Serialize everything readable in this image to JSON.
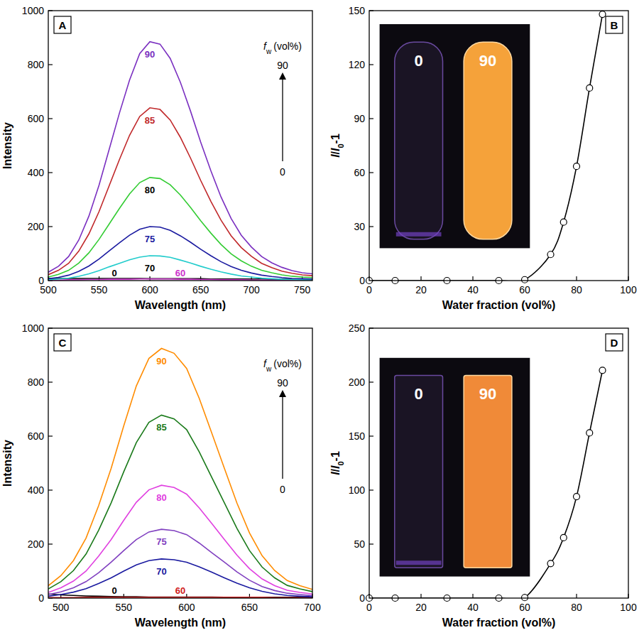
{
  "chart_data": [
    {
      "type": "line",
      "panel": "A",
      "xlabel": "Wavelength (nm)",
      "ylabel": "Intensity",
      "legend_title": "fw (vol%)",
      "x": [
        500,
        510,
        520,
        530,
        540,
        550,
        560,
        570,
        580,
        590,
        600,
        610,
        620,
        630,
        640,
        650,
        660,
        670,
        680,
        690,
        700,
        710,
        720,
        730,
        740,
        750,
        760
      ],
      "xlim": [
        500,
        760
      ],
      "xticks": [
        500,
        550,
        600,
        650,
        700,
        750
      ],
      "ylim": [
        0,
        1000
      ],
      "yticks": [
        0,
        200,
        400,
        600,
        800,
        1000
      ],
      "grid": false,
      "series": [
        {
          "name": "0",
          "color": "#000000",
          "values": [
            8,
            8,
            8,
            8,
            8,
            8,
            8,
            8,
            8,
            8,
            7,
            7,
            7,
            7,
            7,
            7,
            6,
            6,
            6,
            6,
            6,
            6,
            5,
            5,
            5,
            5,
            5
          ]
        },
        {
          "name": "60",
          "color": "#cc33cc",
          "values": [
            2,
            2,
            3,
            3,
            4,
            4,
            5,
            5,
            5,
            6,
            6,
            6,
            6,
            5,
            5,
            4,
            4,
            3,
            3,
            3,
            2,
            2,
            2,
            2,
            2,
            2,
            2
          ]
        },
        {
          "name": "70",
          "color": "#22cccc",
          "values": [
            3,
            6,
            9,
            16,
            25,
            37,
            51,
            64,
            77,
            87,
            92,
            91,
            86,
            76,
            65,
            53,
            42,
            32,
            24,
            17,
            13,
            9,
            7,
            5,
            4,
            3,
            3
          ]
        },
        {
          "name": "75",
          "color": "#1a1aa0",
          "values": [
            7,
            12,
            20,
            34,
            54,
            80,
            110,
            140,
            168,
            190,
            200,
            198,
            186,
            166,
            142,
            116,
            92,
            70,
            52,
            38,
            28,
            20,
            15,
            11,
            8,
            7,
            6
          ]
        },
        {
          "name": "80",
          "color": "#33cc33",
          "values": [
            13,
            23,
            38,
            65,
            103,
            153,
            210,
            267,
            321,
            363,
            382,
            378,
            355,
            317,
            271,
            222,
            176,
            134,
            99,
            73,
            53,
            38,
            29,
            21,
            16,
            13,
            11
          ]
        },
        {
          "name": "85",
          "color": "#c0282a",
          "values": [
            22,
            38,
            64,
            109,
            173,
            256,
            352,
            448,
            538,
            608,
            640,
            634,
            595,
            531,
            454,
            371,
            294,
            224,
            166,
            122,
            90,
            64,
            48,
            35,
            27,
            21,
            18
          ]
        },
        {
          "name": "90",
          "color": "#7a2fc0",
          "values": [
            31,
            53,
            89,
            150,
            239,
            354,
            487,
            620,
            743,
            841,
            885,
            876,
            823,
            735,
            628,
            513,
            407,
            310,
            230,
            168,
            124,
            89,
            66,
            49,
            37,
            29,
            25
          ]
        }
      ]
    },
    {
      "type": "line",
      "marker": "circle",
      "panel": "B",
      "xlabel": "Water fraction (vol%)",
      "ylabel": "I/I0-1",
      "inset_labels": [
        "0",
        "90"
      ],
      "x": [
        0,
        10,
        30,
        50,
        60,
        70,
        75,
        80,
        85,
        90
      ],
      "values": [
        0,
        0,
        0,
        0,
        0.5,
        14.5,
        32.5,
        63.5,
        107,
        148
      ],
      "color": "#000000",
      "xlim": [
        0,
        100
      ],
      "xticks": [
        0,
        20,
        40,
        60,
        80,
        100
      ],
      "ylim": [
        0,
        150
      ],
      "yticks": [
        0,
        30,
        60,
        90,
        120,
        150
      ],
      "grid": false
    },
    {
      "type": "line",
      "panel": "C",
      "xlabel": "Wavelength (nm)",
      "ylabel": "Intensity",
      "legend_title": "fw (vol%)",
      "x": [
        490,
        500,
        510,
        520,
        530,
        540,
        550,
        560,
        570,
        580,
        590,
        600,
        610,
        620,
        630,
        640,
        650,
        660,
        670,
        680,
        690,
        700
      ],
      "xlim": [
        490,
        700
      ],
      "xticks": [
        500,
        550,
        600,
        650,
        700
      ],
      "ylim": [
        0,
        1000
      ],
      "yticks": [
        0,
        200,
        400,
        600,
        800,
        1000
      ],
      "grid": false,
      "series": [
        {
          "name": "0",
          "color": "#000000",
          "values": [
            15,
            12,
            10,
            8,
            7,
            6,
            5,
            5,
            4,
            4,
            4,
            4,
            4,
            4,
            3,
            3,
            3,
            3,
            3,
            3,
            3,
            3
          ]
        },
        {
          "name": "60",
          "color": "#d02020",
          "values": [
            2,
            2,
            2,
            3,
            3,
            3,
            3,
            3,
            3,
            3,
            3,
            3,
            3,
            3,
            3,
            3,
            3,
            3,
            2,
            2,
            2,
            2
          ]
        },
        {
          "name": "70",
          "color": "#1a1aa0",
          "values": [
            7,
            13,
            22,
            35,
            54,
            75,
            100,
            123,
            139,
            145,
            142,
            133,
            116,
            96,
            75,
            55,
            38,
            25,
            16,
            10,
            7,
            5
          ]
        },
        {
          "name": "75",
          "color": "#8040c0",
          "values": [
            13,
            23,
            38,
            61,
            94,
            133,
            176,
            217,
            245,
            255,
            250,
            235,
            204,
            168,
            133,
            97,
            66,
            43,
            28,
            18,
            13,
            9
          ]
        },
        {
          "name": "80",
          "color": "#e040e0",
          "values": [
            21,
            38,
            63,
            100,
            155,
            217,
            288,
            355,
            401,
            418,
            410,
            385,
            334,
            276,
            217,
            159,
            109,
            71,
            46,
            29,
            21,
            15
          ]
        },
        {
          "name": "85",
          "color": "#1a7a1a",
          "values": [
            34,
            61,
            102,
            163,
            251,
            353,
            468,
            576,
            651,
            678,
            664,
            624,
            542,
            447,
            353,
            258,
            176,
            115,
            75,
            47,
            34,
            24
          ]
        },
        {
          "name": "90",
          "color": "#ff8c00",
          "values": [
            46,
            83,
            139,
            222,
            342,
            481,
            638,
            786,
            888,
            925,
            907,
            851,
            740,
            611,
            481,
            352,
            241,
            157,
            102,
            65,
            46,
            32
          ]
        }
      ]
    },
    {
      "type": "line",
      "marker": "circle",
      "panel": "D",
      "xlabel": "Water fraction (vol%)",
      "ylabel": "I/I0-1",
      "inset_labels": [
        "0",
        "90"
      ],
      "x": [
        0,
        10,
        30,
        50,
        60,
        70,
        75,
        80,
        85,
        90
      ],
      "values": [
        0,
        0,
        0,
        0,
        0.5,
        32,
        56,
        94,
        153,
        211
      ],
      "color": "#000000",
      "xlim": [
        0,
        100
      ],
      "xticks": [
        0,
        20,
        40,
        60,
        80,
        100
      ],
      "ylim": [
        0,
        250
      ],
      "yticks": [
        0,
        50,
        100,
        150,
        200,
        250
      ],
      "grid": false
    }
  ]
}
